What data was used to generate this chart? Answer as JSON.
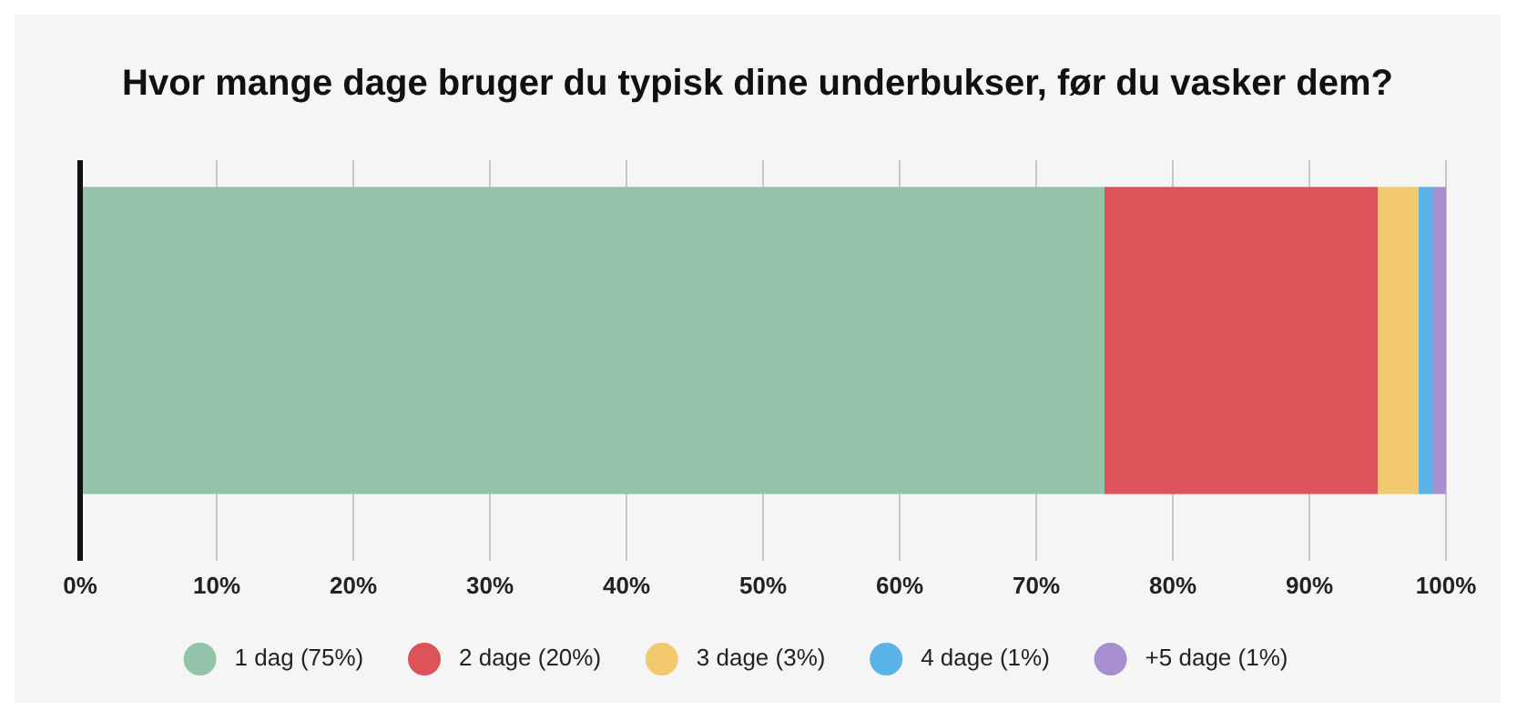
{
  "chart_data": {
    "type": "bar",
    "orientation": "horizontal",
    "stacked": true,
    "title": "Hvor mange dage bruger du typisk dine underbukser, før du vasker dem?",
    "categories": [
      null
    ],
    "series": [
      {
        "name": "1 dag (75%)",
        "color": "#93c4aa",
        "values": [
          75
        ]
      },
      {
        "name": "2 dage (20%)",
        "color": "#dc535a",
        "values": [
          20
        ]
      },
      {
        "name": "3 dage (3%)",
        "color": "#f2c96d",
        "values": [
          3
        ]
      },
      {
        "name": "4 dage (1%)",
        "color": "#5ab4e8",
        "values": [
          1
        ]
      },
      {
        "name": "+5 dage (1%)",
        "color": "#a98fd0",
        "values": [
          1
        ]
      }
    ],
    "xlim": [
      0,
      100
    ],
    "xticks": [
      {
        "value": 0,
        "label": "0%"
      },
      {
        "value": 10,
        "label": "10%"
      },
      {
        "value": 20,
        "label": "20%"
      },
      {
        "value": 30,
        "label": "30%"
      },
      {
        "value": 40,
        "label": "40%"
      },
      {
        "value": 50,
        "label": "50%"
      },
      {
        "value": 60,
        "label": "60%"
      },
      {
        "value": 70,
        "label": "70%"
      },
      {
        "value": 80,
        "label": "80%"
      },
      {
        "value": 90,
        "label": "90%"
      },
      {
        "value": 100,
        "label": "100%"
      }
    ],
    "grid": "x",
    "legend": "bottom"
  }
}
